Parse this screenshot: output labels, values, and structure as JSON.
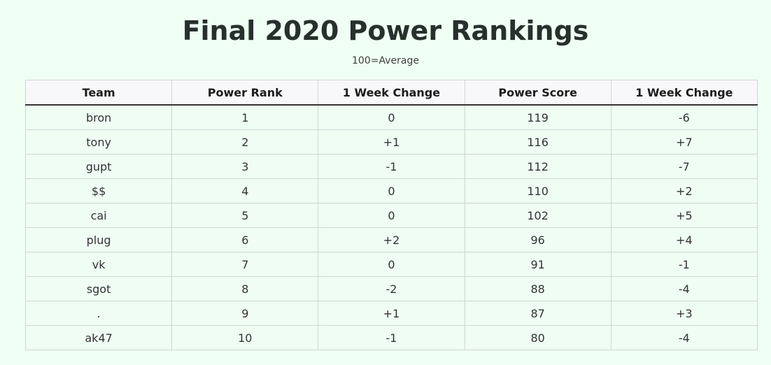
{
  "page": {
    "title": "Final 2020 Power Rankings",
    "subtitle": "100=Average"
  },
  "table": {
    "headers": [
      "Team",
      "Power Rank",
      "1 Week Change",
      "Power Score",
      "1 Week Change"
    ],
    "rows": [
      [
        "bron",
        "1",
        "0",
        "119",
        "-6"
      ],
      [
        "tony",
        "2",
        "+1",
        "116",
        "+7"
      ],
      [
        "gupt",
        "3",
        "-1",
        "112",
        "-7"
      ],
      [
        "$$",
        "4",
        "0",
        "110",
        "+2"
      ],
      [
        "cai",
        "5",
        "0",
        "102",
        "+5"
      ],
      [
        "plug",
        "6",
        "+2",
        "96",
        "+4"
      ],
      [
        "vk",
        "7",
        "0",
        "91",
        "-1"
      ],
      [
        "sgot",
        "8",
        "-2",
        "88",
        "-4"
      ],
      [
        ".",
        "9",
        "+1",
        "87",
        "+3"
      ],
      [
        "ak47",
        "10",
        "-1",
        "80",
        "-4"
      ]
    ]
  },
  "colors": {
    "background": "#f0fff4",
    "header_background": "#f8f8fb",
    "border": "#cfd6d2"
  }
}
